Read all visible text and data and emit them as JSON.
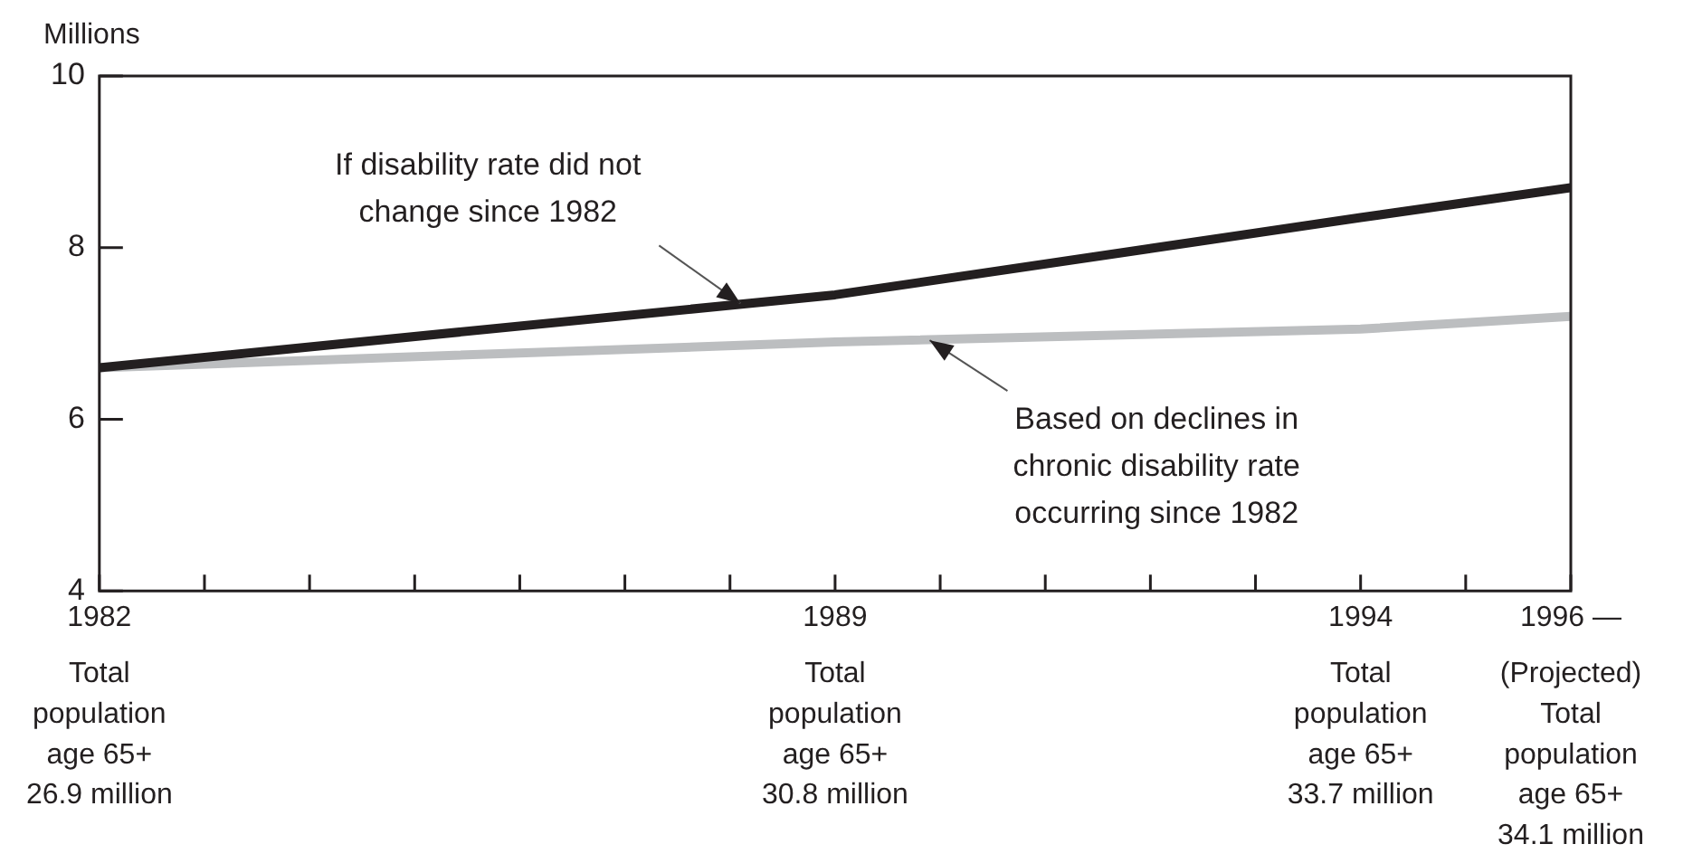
{
  "chart_data": {
    "type": "line",
    "ylabel": "Millions",
    "x": [
      1982,
      1989,
      1994,
      1996
    ],
    "series": [
      {
        "color": "#231f20",
        "values": [
          6.6,
          7.45,
          8.35,
          8.7
        ]
      },
      {
        "color": "#bcbec0",
        "values": [
          6.6,
          6.9,
          7.05,
          7.2
        ]
      }
    ],
    "xlim": [
      1982,
      1996
    ],
    "xticks": [
      1982,
      {
        "value": 1983,
        "label": null
      },
      {
        "value": 1984,
        "label": null
      },
      {
        "value": 1985,
        "label": null
      },
      {
        "value": 1986,
        "label": null
      },
      {
        "value": 1987,
        "label": null
      },
      {
        "value": 1988,
        "label": null
      },
      1989,
      {
        "value": 1990,
        "label": null
      },
      {
        "value": 1991,
        "label": null
      },
      {
        "value": 1992,
        "label": null
      },
      {
        "value": 1993,
        "label": null
      },
      1994,
      {
        "value": 1995,
        "label": null
      },
      {
        "value": 1996,
        "label": "1996 —"
      }
    ],
    "ylim": [
      4,
      10
    ],
    "yticks": [
      4,
      6,
      8,
      10
    ],
    "grid": false,
    "marker": "none",
    "line_style": "solid",
    "legend": false,
    "annotations": [
      {
        "text": "If disability rate did not\nchange since 1982",
        "x": 1988.1,
        "y": 7.35
      },
      {
        "text": "Based on declines in\nchronic disability rate\noccurring since 1982",
        "x": 1989.9,
        "y": 6.92
      },
      "Total\npopulation\nage 65+\n26.9 million",
      "Total\npopulation\nage 65+\n30.8 million",
      "Total\npopulation\nage 65+\n33.7 million",
      "(Projected)\nTotal\npopulation\nage 65+\n34.1 million"
    ]
  }
}
